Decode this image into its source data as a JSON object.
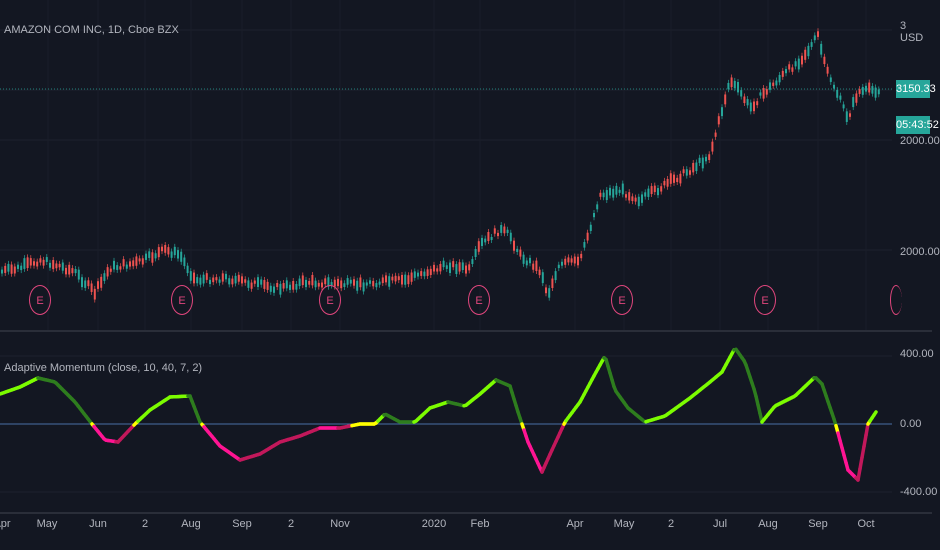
{
  "header": {
    "symbol_title": "AMAZON COM INC, 1D, Cboe BZX",
    "currency": "USD",
    "last_price": "3150.33",
    "countdown": "05:43:52"
  },
  "price_axis": {
    "labels": [
      "3",
      "2000.00",
      "2000.00"
    ]
  },
  "earnings_marker": "E",
  "indicator": {
    "title": "Adaptive Momentum (close, 10, 40, 7, 2)",
    "axis_labels": [
      "400.00",
      "0.00",
      "-400.00"
    ]
  },
  "x_axis": {
    "ticks": [
      "Apr",
      "May",
      "Jun",
      "2",
      "Aug",
      "Sep",
      "2",
      "Nov",
      "2020",
      "Feb",
      "Apr",
      "May",
      "2",
      "Jul",
      "Aug",
      "Sep",
      "Oct"
    ]
  },
  "colors": {
    "background": "#131722",
    "up_candle": "#26a69a",
    "down_candle": "#ef5350",
    "momentum_bright": "#7cfc00",
    "momentum_dark": "#2e7d1e",
    "momentum_neg": "#ff1493",
    "momentum_neg_dark": "#c2185b",
    "zero_line": "#4a6fa5",
    "earnings": "#e0467d"
  }
}
